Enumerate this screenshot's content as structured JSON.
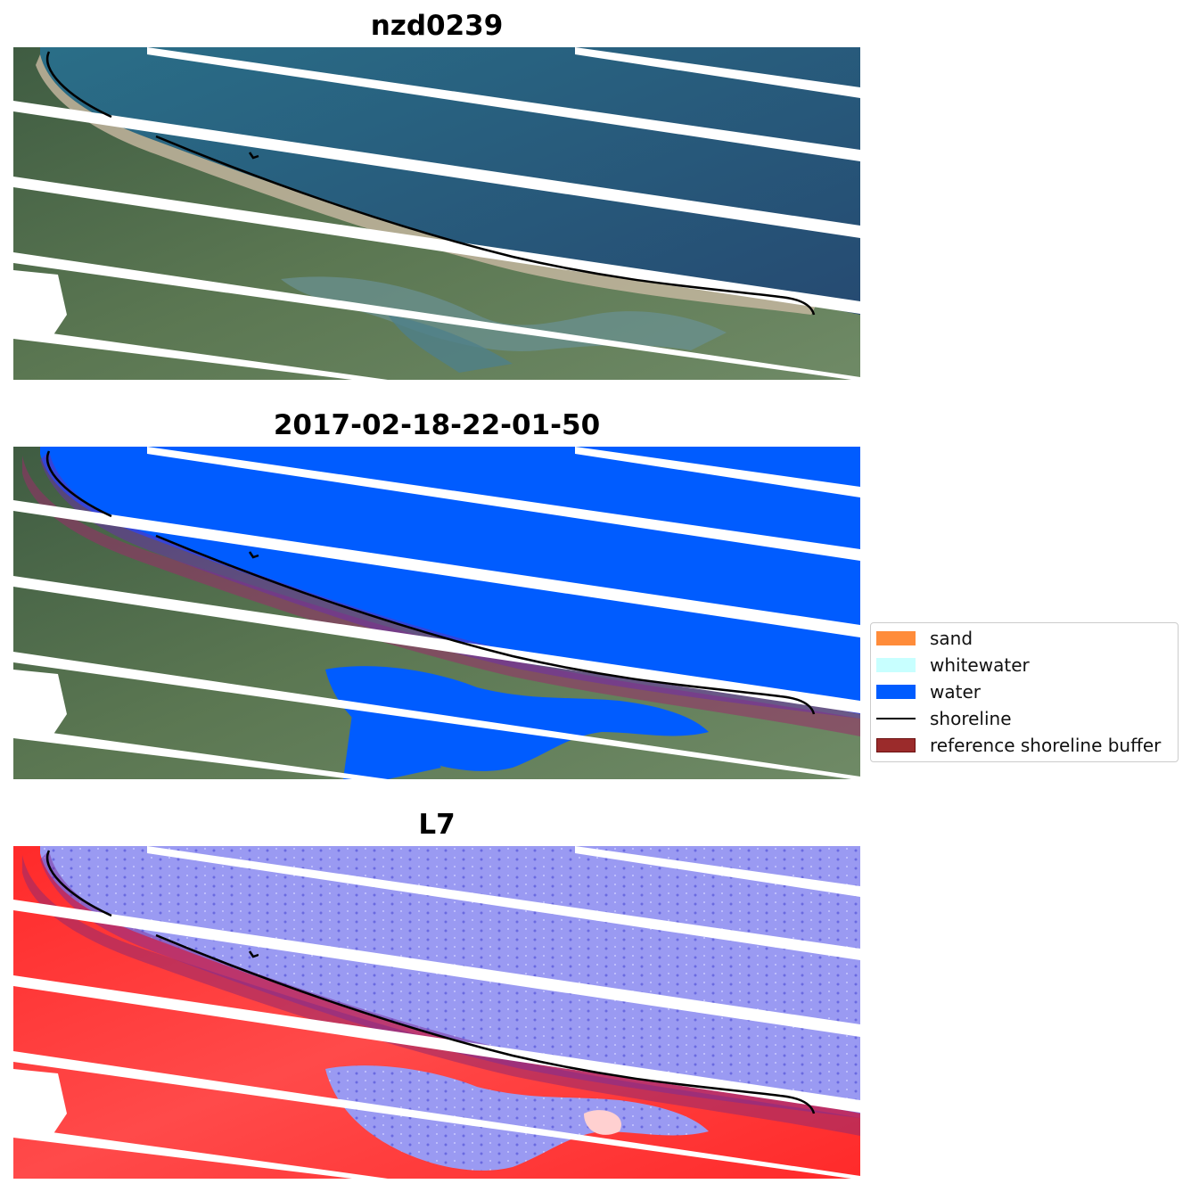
{
  "panels": {
    "p1": {
      "title": "nzd0239"
    },
    "p2": {
      "title": "2017-02-18-22-01-50"
    },
    "p3": {
      "title": "L7"
    }
  },
  "legend": {
    "items": [
      {
        "label": "sand",
        "color": "#ff8c3a",
        "kind": "patch"
      },
      {
        "label": "whitewater",
        "color": "#c8ffff",
        "kind": "patch"
      },
      {
        "label": "water",
        "color": "#005cff",
        "kind": "patch"
      },
      {
        "label": "shoreline",
        "color": "#000000",
        "kind": "line"
      },
      {
        "label": "reference shoreline buffer",
        "color": "#9b2b2b",
        "kind": "patch"
      }
    ]
  },
  "colors": {
    "ocean_rgb": "#2f6a8a",
    "land_green": "#4f6b48",
    "classified_water": "#005cff",
    "index_water": "#8c8cf2",
    "index_land": "#ff2a2a",
    "buffer": "#9b2b6a",
    "shoreline": "#000000"
  }
}
